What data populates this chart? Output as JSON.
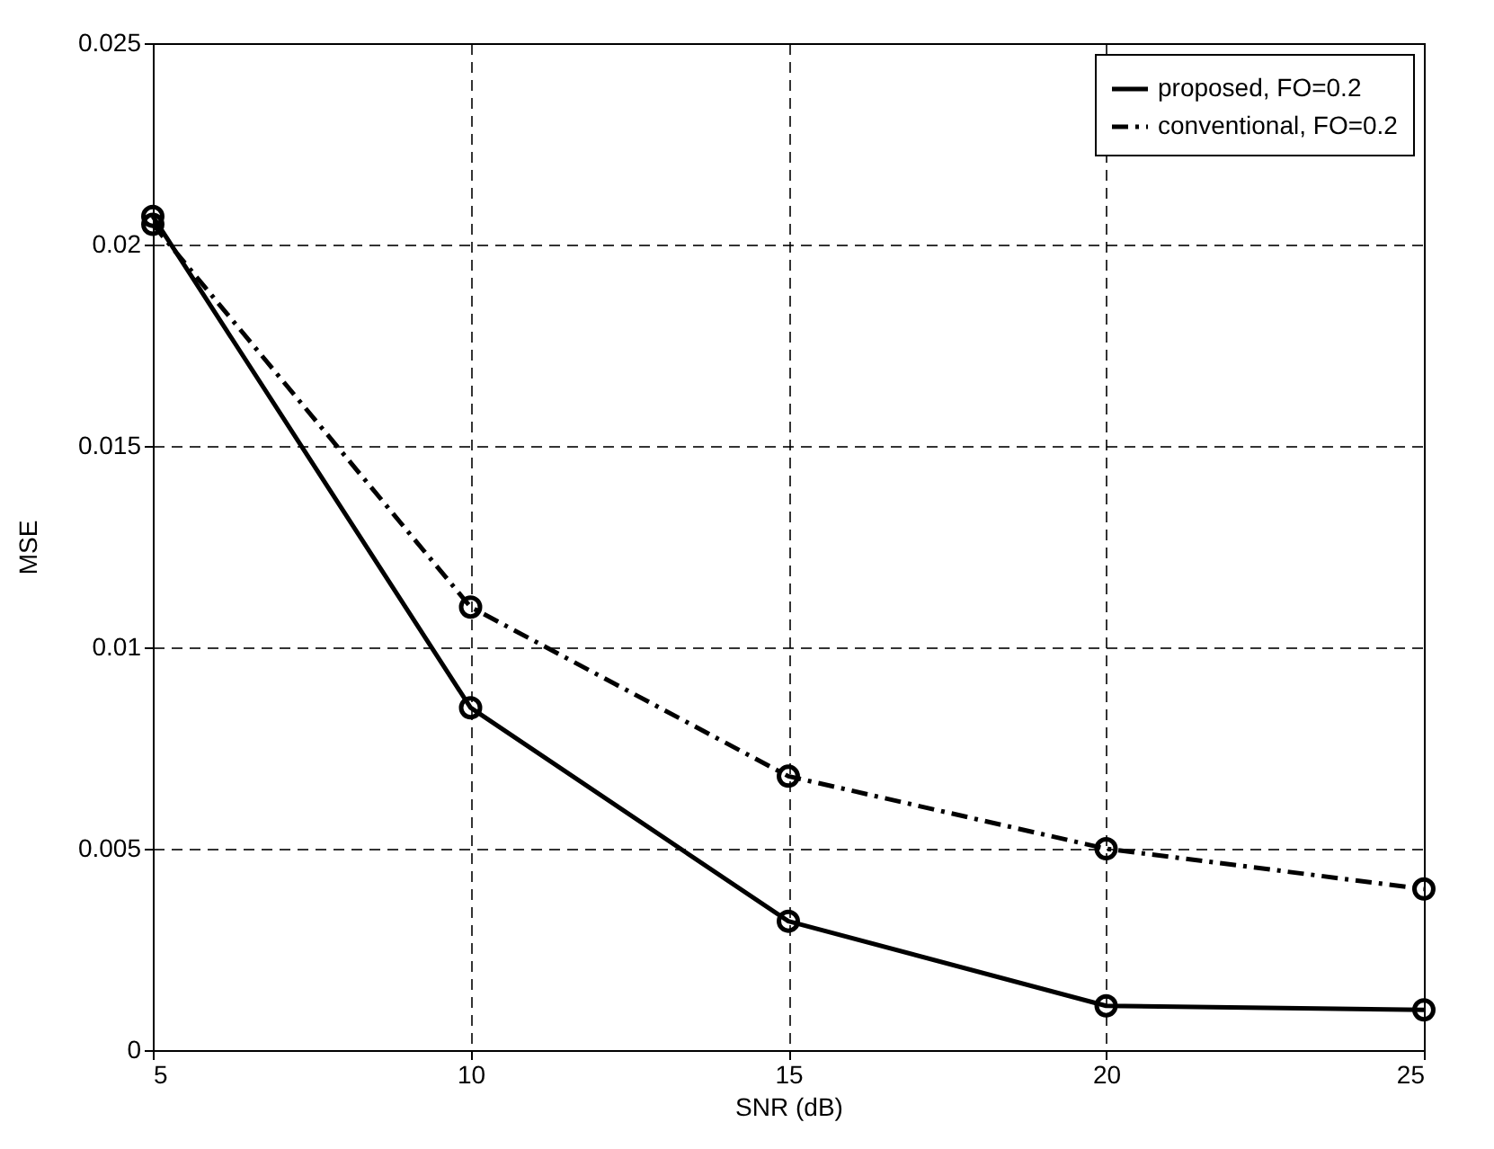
{
  "chart_data": {
    "type": "line",
    "xlabel": "SNR (dB)",
    "ylabel": "MSE",
    "x": [
      5,
      10,
      15,
      20,
      25
    ],
    "series": [
      {
        "name": "proposed, FO=0.2",
        "color": "#000000",
        "line_style": "solid",
        "values": [
          0.0207,
          0.0085,
          0.0032,
          0.0011,
          0.001
        ]
      },
      {
        "name": "conventional, FO=0.2",
        "color": "#000000",
        "line_style": "dashed",
        "values": [
          0.0205,
          0.011,
          0.0068,
          0.005,
          0.004
        ]
      }
    ],
    "xlim": [
      5,
      25
    ],
    "xticks": [
      5,
      10,
      15,
      20,
      25
    ],
    "ylim": [
      0,
      0.025
    ],
    "yticks": [
      0,
      0.005,
      0.01,
      0.015,
      0.02,
      0.025
    ],
    "grid": true,
    "legend": "top right",
    "marker": "circle"
  }
}
